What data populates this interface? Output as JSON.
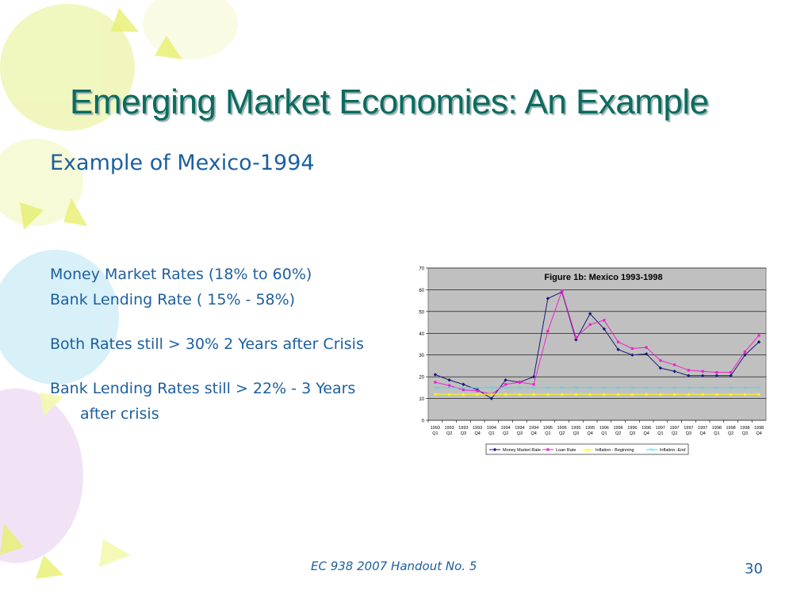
{
  "slide": {
    "title": "Emerging Market Economies: An Example",
    "subtitle": "Example of Mexico-1994",
    "bullets": [
      "Money Market Rates (18% to 60%)",
      "Bank Lending Rate ( 15% - 58%)",
      "Both Rates still > 30% 2 Years after Crisis",
      "Bank Lending  Rates still > 22% - 3 Years after crisis"
    ],
    "footer": "EC 938 2007 Handout No. 5",
    "page_number": "30"
  },
  "chart_data": {
    "type": "line",
    "title": "Figure 1b: Mexico 1993-1998",
    "xlabel": "",
    "ylabel": "",
    "ylim": [
      0,
      70
    ],
    "yticks": [
      0,
      10,
      20,
      30,
      40,
      50,
      60,
      70
    ],
    "grid": true,
    "legend_position": "bottom",
    "categories": [
      [
        "1993",
        "Q1"
      ],
      [
        "1993",
        "Q2"
      ],
      [
        "1993",
        "Q3"
      ],
      [
        "1993",
        "Q4"
      ],
      [
        "1994",
        "Q1"
      ],
      [
        "1994",
        "Q2"
      ],
      [
        "1994",
        "Q3"
      ],
      [
        "1994",
        "Q4"
      ],
      [
        "1995",
        "Q1"
      ],
      [
        "1995",
        "Q2"
      ],
      [
        "1995",
        "Q3"
      ],
      [
        "1995",
        "Q4"
      ],
      [
        "1996",
        "Q1"
      ],
      [
        "1996",
        "Q2"
      ],
      [
        "1996",
        "Q3"
      ],
      [
        "1996",
        "Q4"
      ],
      [
        "1997",
        "Q1"
      ],
      [
        "1997",
        "Q2"
      ],
      [
        "1997",
        "Q3"
      ],
      [
        "1997",
        "Q4"
      ],
      [
        "1998",
        "Q1"
      ],
      [
        "1998",
        "Q2"
      ],
      [
        "1998",
        "Q3"
      ],
      [
        "1998",
        "Q4"
      ]
    ],
    "series": [
      {
        "name": "Money Market Rate",
        "color": "#1a1a7a",
        "marker": "diamond",
        "values": [
          21,
          18.5,
          16.5,
          14,
          10,
          18.5,
          17.5,
          20,
          56,
          59,
          37,
          49,
          42,
          32.5,
          30,
          30.5,
          24,
          22.5,
          20.5,
          20.5,
          20.5,
          20.5,
          30,
          36
        ]
      },
      {
        "name": "Loan Rate",
        "color": "#ee22cc",
        "marker": "square",
        "values": [
          17.5,
          16,
          14,
          13.5,
          12,
          16.5,
          17.5,
          16.5,
          41,
          59.5,
          38,
          44,
          46,
          36,
          33,
          33.5,
          27.5,
          25.5,
          23,
          22.5,
          22,
          22,
          31.5,
          39
        ]
      },
      {
        "name": "Inflation - Beginning",
        "color": "#ffff00",
        "marker": "triangle",
        "values": [
          12,
          12,
          12,
          12,
          12,
          12,
          12,
          12,
          12,
          12,
          12,
          12,
          12,
          12,
          12,
          12,
          12,
          12,
          12,
          12,
          12,
          12,
          12,
          12
        ]
      },
      {
        "name": "Inflation -End",
        "color": "#33ddee",
        "marker": "x",
        "values": [
          15,
          15,
          15,
          15,
          15,
          15,
          15,
          15,
          15,
          15,
          15,
          15,
          15,
          15,
          15,
          15,
          15,
          15,
          15,
          15,
          15,
          15,
          15,
          15
        ]
      }
    ]
  }
}
